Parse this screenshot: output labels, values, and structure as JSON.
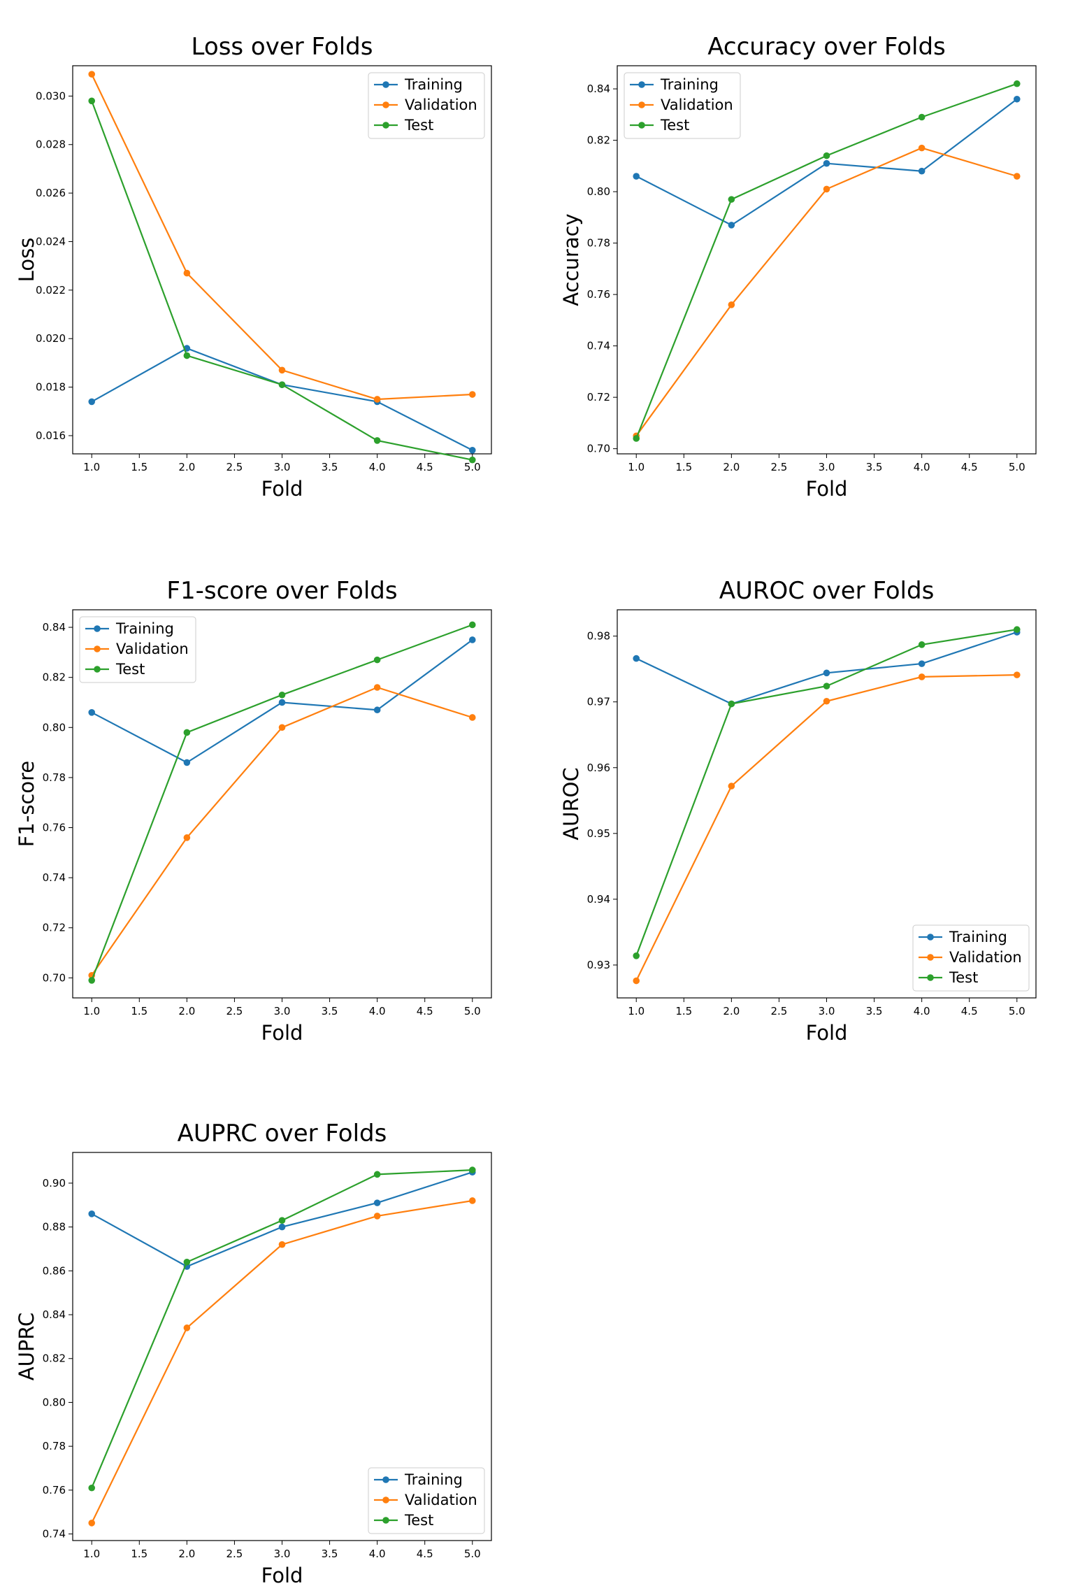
{
  "colors": {
    "training": "#1f77b4",
    "validation": "#ff7f0e",
    "test": "#2ca02c"
  },
  "chart_data": [
    {
      "type": "line",
      "title": "Loss over Folds",
      "xlabel": "Fold",
      "ylabel": "Loss",
      "x": [
        1.0,
        2.0,
        3.0,
        4.0,
        5.0
      ],
      "xlim": [
        0.8,
        5.2
      ],
      "ylim": [
        0.01525,
        0.03125
      ],
      "xticks": [
        "1.0",
        "1.5",
        "2.0",
        "2.5",
        "3.0",
        "3.5",
        "4.0",
        "4.5",
        "5.0"
      ],
      "xtick_values": [
        1.0,
        1.5,
        2.0,
        2.5,
        3.0,
        3.5,
        4.0,
        4.5,
        5.0
      ],
      "yticks": [
        "0.016",
        "0.018",
        "0.020",
        "0.022",
        "0.024",
        "0.026",
        "0.028",
        "0.030"
      ],
      "ytick_values": [
        0.016,
        0.018,
        0.02,
        0.022,
        0.024,
        0.026,
        0.028,
        0.03
      ],
      "legend_loc": "upper-right",
      "series": [
        {
          "name": "Training",
          "values": [
            0.0174,
            0.0196,
            0.0181,
            0.0174,
            0.0154
          ]
        },
        {
          "name": "Validation",
          "values": [
            0.0309,
            0.0227,
            0.0187,
            0.0175,
            0.0177
          ]
        },
        {
          "name": "Test",
          "values": [
            0.0298,
            0.0193,
            0.0181,
            0.0158,
            0.015
          ]
        }
      ]
    },
    {
      "type": "line",
      "title": "Accuracy over Folds",
      "xlabel": "Fold",
      "ylabel": "Accuracy",
      "x": [
        1.0,
        2.0,
        3.0,
        4.0,
        5.0
      ],
      "xlim": [
        0.8,
        5.2
      ],
      "ylim": [
        0.698,
        0.849
      ],
      "xticks": [
        "1.0",
        "1.5",
        "2.0",
        "2.5",
        "3.0",
        "3.5",
        "4.0",
        "4.5",
        "5.0"
      ],
      "xtick_values": [
        1.0,
        1.5,
        2.0,
        2.5,
        3.0,
        3.5,
        4.0,
        4.5,
        5.0
      ],
      "yticks": [
        "0.70",
        "0.72",
        "0.74",
        "0.76",
        "0.78",
        "0.80",
        "0.82",
        "0.84"
      ],
      "ytick_values": [
        0.7,
        0.72,
        0.74,
        0.76,
        0.78,
        0.8,
        0.82,
        0.84
      ],
      "legend_loc": "upper-left",
      "series": [
        {
          "name": "Training",
          "values": [
            0.806,
            0.787,
            0.811,
            0.808,
            0.836
          ]
        },
        {
          "name": "Validation",
          "values": [
            0.705,
            0.756,
            0.801,
            0.817,
            0.806
          ]
        },
        {
          "name": "Test",
          "values": [
            0.704,
            0.797,
            0.814,
            0.829,
            0.842
          ]
        }
      ]
    },
    {
      "type": "line",
      "title": "F1-score over Folds",
      "xlabel": "Fold",
      "ylabel": "F1-score",
      "x": [
        1.0,
        2.0,
        3.0,
        4.0,
        5.0
      ],
      "xlim": [
        0.8,
        5.2
      ],
      "ylim": [
        0.692,
        0.847
      ],
      "xticks": [
        "1.0",
        "1.5",
        "2.0",
        "2.5",
        "3.0",
        "3.5",
        "4.0",
        "4.5",
        "5.0"
      ],
      "xtick_values": [
        1.0,
        1.5,
        2.0,
        2.5,
        3.0,
        3.5,
        4.0,
        4.5,
        5.0
      ],
      "yticks": [
        "0.70",
        "0.72",
        "0.74",
        "0.76",
        "0.78",
        "0.80",
        "0.82",
        "0.84"
      ],
      "ytick_values": [
        0.7,
        0.72,
        0.74,
        0.76,
        0.78,
        0.8,
        0.82,
        0.84
      ],
      "legend_loc": "upper-left",
      "series": [
        {
          "name": "Training",
          "values": [
            0.806,
            0.786,
            0.81,
            0.807,
            0.835
          ]
        },
        {
          "name": "Validation",
          "values": [
            0.701,
            0.756,
            0.8,
            0.816,
            0.804
          ]
        },
        {
          "name": "Test",
          "values": [
            0.699,
            0.798,
            0.813,
            0.827,
            0.841
          ]
        }
      ]
    },
    {
      "type": "line",
      "title": "AUROC over Folds",
      "xlabel": "Fold",
      "ylabel": "AUROC",
      "x": [
        1.0,
        2.0,
        3.0,
        4.0,
        5.0
      ],
      "xlim": [
        0.8,
        5.2
      ],
      "ylim": [
        0.925,
        0.984
      ],
      "xticks": [
        "1.0",
        "1.5",
        "2.0",
        "2.5",
        "3.0",
        "3.5",
        "4.0",
        "4.5",
        "5.0"
      ],
      "xtick_values": [
        1.0,
        1.5,
        2.0,
        2.5,
        3.0,
        3.5,
        4.0,
        4.5,
        5.0
      ],
      "yticks": [
        "0.93",
        "0.94",
        "0.95",
        "0.96",
        "0.97",
        "0.98"
      ],
      "ytick_values": [
        0.93,
        0.94,
        0.95,
        0.96,
        0.97,
        0.98
      ],
      "legend_loc": "lower-right",
      "series": [
        {
          "name": "Training",
          "values": [
            0.9766,
            0.9697,
            0.9744,
            0.9758,
            0.9806
          ]
        },
        {
          "name": "Validation",
          "values": [
            0.9276,
            0.9572,
            0.9701,
            0.9738,
            0.9741
          ]
        },
        {
          "name": "Test",
          "values": [
            0.9314,
            0.9697,
            0.9724,
            0.9787,
            0.981
          ]
        }
      ]
    },
    {
      "type": "line",
      "title": "AUPRC over Folds",
      "xlabel": "Fold",
      "ylabel": "AUPRC",
      "x": [
        1.0,
        2.0,
        3.0,
        4.0,
        5.0
      ],
      "xlim": [
        0.8,
        5.2
      ],
      "ylim": [
        0.737,
        0.914
      ],
      "xticks": [
        "1.0",
        "1.5",
        "2.0",
        "2.5",
        "3.0",
        "3.5",
        "4.0",
        "4.5",
        "5.0"
      ],
      "xtick_values": [
        1.0,
        1.5,
        2.0,
        2.5,
        3.0,
        3.5,
        4.0,
        4.5,
        5.0
      ],
      "yticks": [
        "0.74",
        "0.76",
        "0.78",
        "0.80",
        "0.82",
        "0.84",
        "0.86",
        "0.88",
        "0.90"
      ],
      "ytick_values": [
        0.74,
        0.76,
        0.78,
        0.8,
        0.82,
        0.84,
        0.86,
        0.88,
        0.9
      ],
      "legend_loc": "lower-right",
      "series": [
        {
          "name": "Training",
          "values": [
            0.886,
            0.862,
            0.88,
            0.891,
            0.905
          ]
        },
        {
          "name": "Validation",
          "values": [
            0.745,
            0.834,
            0.872,
            0.885,
            0.892
          ]
        },
        {
          "name": "Test",
          "values": [
            0.761,
            0.864,
            0.883,
            0.904,
            0.906
          ]
        }
      ]
    }
  ]
}
